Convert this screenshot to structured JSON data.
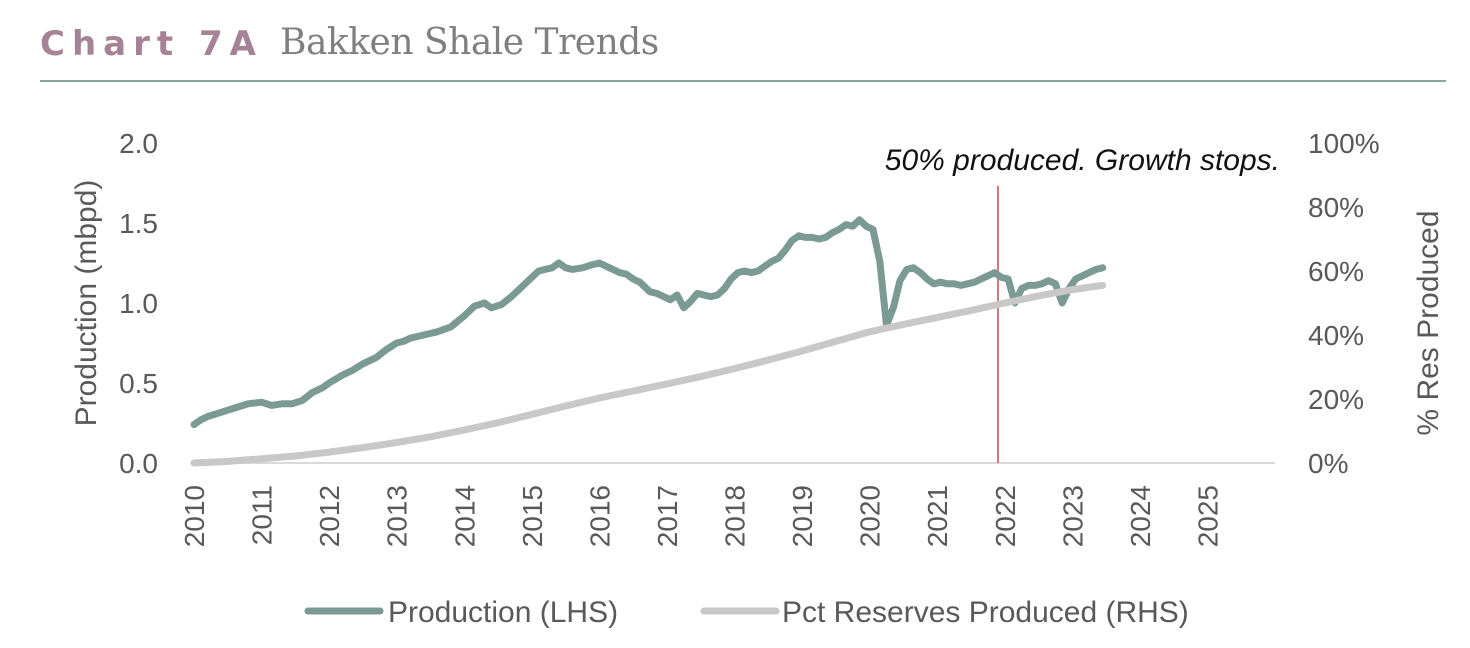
{
  "header": {
    "label": "Chart 7A",
    "title": "Bakken Shale Trends"
  },
  "colors": {
    "production": "#7b9a93",
    "reserves": "#c8c8c8",
    "marker": "#c0504d",
    "axis_text": "#595959",
    "label_accent": "#a68296"
  },
  "chart_data": {
    "type": "line",
    "title": "Bakken Shale Trends",
    "ylabel": "Production (mbpd)",
    "y2label": "% Res Produced",
    "ylim": [
      0,
      2.0
    ],
    "y2lim": [
      0,
      100
    ],
    "xlim": [
      2010,
      2026
    ],
    "y_ticks": [
      "0.0",
      "0.5",
      "1.0",
      "1.5",
      "2.0"
    ],
    "y2_ticks": [
      "0%",
      "20%",
      "40%",
      "60%",
      "80%",
      "100%"
    ],
    "x_ticks": [
      "2010",
      "2011",
      "2012",
      "2013",
      "2014",
      "2015",
      "2016",
      "2017",
      "2018",
      "2019",
      "2020",
      "2021",
      "2022",
      "2023",
      "2024",
      "2025"
    ],
    "legend_position": "bottom",
    "annotation": {
      "text": "50% produced. Growth stops.",
      "x": 2021.9
    },
    "series": [
      {
        "name": "Production (LHS)",
        "axis": "left",
        "x": [
          2010.0,
          2010.1,
          2010.2,
          2010.35,
          2010.5,
          2010.65,
          2010.8,
          2011.0,
          2011.15,
          2011.3,
          2011.45,
          2011.6,
          2011.75,
          2011.9,
          2012.0,
          2012.2,
          2012.35,
          2012.5,
          2012.7,
          2012.85,
          2013.0,
          2013.1,
          2013.2,
          2013.3,
          2013.4,
          2013.5,
          2013.6,
          2013.8,
          2014.0,
          2014.15,
          2014.3,
          2014.4,
          2014.55,
          2014.7,
          2014.85,
          2015.0,
          2015.1,
          2015.2,
          2015.3,
          2015.4,
          2015.5,
          2015.6,
          2015.75,
          2015.9,
          2016.0,
          2016.15,
          2016.3,
          2016.4,
          2016.5,
          2016.6,
          2016.75,
          2016.85,
          2016.95,
          2017.05,
          2017.15,
          2017.25,
          2017.35,
          2017.45,
          2017.55,
          2017.65,
          2017.75,
          2017.85,
          2017.95,
          2018.05,
          2018.15,
          2018.25,
          2018.35,
          2018.45,
          2018.55,
          2018.65,
          2018.75,
          2018.85,
          2018.95,
          2019.05,
          2019.15,
          2019.25,
          2019.35,
          2019.45,
          2019.55,
          2019.65,
          2019.75,
          2019.85,
          2019.95,
          2020.05,
          2020.15,
          2020.25,
          2020.35,
          2020.45,
          2020.55,
          2020.65,
          2020.75,
          2020.85,
          2020.95,
          2021.05,
          2021.15,
          2021.25,
          2021.35,
          2021.45,
          2021.55,
          2021.65,
          2021.75,
          2021.85,
          2021.95,
          2022.05,
          2022.15,
          2022.25,
          2022.35,
          2022.45,
          2022.55,
          2022.65,
          2022.75,
          2022.85,
          2022.95,
          2023.05,
          2023.15,
          2023.25,
          2023.35,
          2023.45
        ],
        "values": [
          0.24,
          0.27,
          0.29,
          0.31,
          0.33,
          0.35,
          0.37,
          0.38,
          0.36,
          0.37,
          0.37,
          0.39,
          0.44,
          0.47,
          0.5,
          0.55,
          0.58,
          0.62,
          0.66,
          0.71,
          0.75,
          0.76,
          0.78,
          0.79,
          0.8,
          0.81,
          0.82,
          0.85,
          0.92,
          0.98,
          1.0,
          0.97,
          0.99,
          1.04,
          1.1,
          1.16,
          1.2,
          1.21,
          1.22,
          1.25,
          1.22,
          1.21,
          1.22,
          1.24,
          1.25,
          1.22,
          1.19,
          1.18,
          1.15,
          1.13,
          1.07,
          1.06,
          1.04,
          1.02,
          1.05,
          0.97,
          1.01,
          1.06,
          1.05,
          1.04,
          1.05,
          1.09,
          1.15,
          1.19,
          1.2,
          1.19,
          1.2,
          1.23,
          1.26,
          1.28,
          1.33,
          1.39,
          1.42,
          1.41,
          1.41,
          1.4,
          1.41,
          1.44,
          1.46,
          1.49,
          1.48,
          1.52,
          1.48,
          1.46,
          1.26,
          0.86,
          0.97,
          1.14,
          1.21,
          1.22,
          1.19,
          1.15,
          1.12,
          1.13,
          1.12,
          1.12,
          1.11,
          1.12,
          1.13,
          1.15,
          1.17,
          1.19,
          1.16,
          1.15,
          1.0,
          1.09,
          1.11,
          1.11,
          1.12,
          1.14,
          1.12,
          1.0,
          1.09,
          1.15,
          1.17,
          1.19,
          1.21,
          1.22
        ]
      },
      {
        "name": "Pct Reserves Produced (RHS)",
        "axis": "right",
        "x": [
          2010.0,
          2010.5,
          2011.0,
          2011.5,
          2012.0,
          2012.5,
          2013.0,
          2013.5,
          2014.0,
          2014.5,
          2015.0,
          2015.5,
          2016.0,
          2016.5,
          2017.0,
          2017.5,
          2018.0,
          2018.5,
          2019.0,
          2019.5,
          2020.0,
          2020.5,
          2021.0,
          2021.5,
          2022.0,
          2022.5,
          2023.0,
          2023.45
        ],
        "values": [
          0.0,
          0.5,
          1.3,
          2.2,
          3.4,
          4.8,
          6.4,
          8.2,
          10.3,
          12.6,
          15.2,
          17.8,
          20.3,
          22.5,
          24.7,
          27.0,
          29.5,
          32.2,
          35.0,
          38.0,
          41.0,
          43.3,
          45.5,
          47.7,
          50.0,
          52.2,
          54.2,
          55.5
        ]
      }
    ]
  }
}
